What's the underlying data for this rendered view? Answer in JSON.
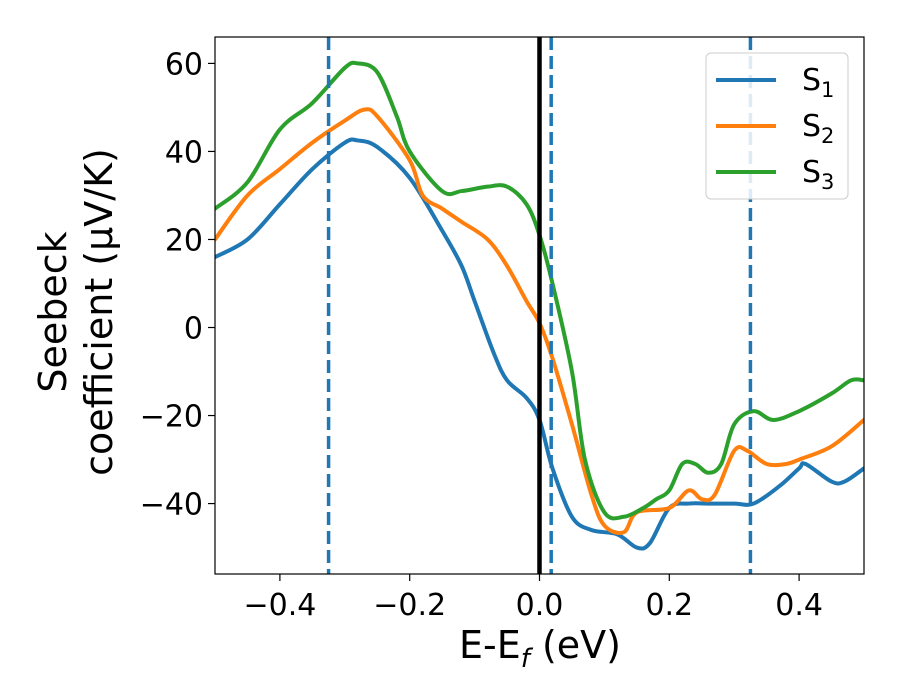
{
  "chart_data": {
    "type": "line",
    "title": "",
    "xlabel": {
      "base": "E-E",
      "sub": "f",
      "suffix": " (eV)"
    },
    "ylabel": {
      "line1": "Seebeck",
      "line2": "coefficient  (μV/K)"
    },
    "xlim": [
      -0.5,
      0.5
    ],
    "ylim": [
      -56,
      66
    ],
    "xticks": [
      -0.4,
      -0.2,
      0.0,
      0.2,
      0.4
    ],
    "xtick_labels": [
      "−0.4",
      "−0.2",
      "0.0",
      "0.2",
      "0.4"
    ],
    "yticks": [
      -40,
      -20,
      0,
      20,
      40,
      60
    ],
    "ytick_labels": [
      "−40",
      "−20",
      "0",
      "20",
      "40",
      "60"
    ],
    "grid": false,
    "legend_position": "top-right",
    "vertical_lines": [
      {
        "x": -0.325,
        "style": "dashed",
        "color": "#1f77b4"
      },
      {
        "x": 0.0,
        "style": "solid",
        "color": "#000000"
      },
      {
        "x": 0.018,
        "style": "dashed",
        "color": "#1f77b4"
      },
      {
        "x": 0.325,
        "style": "dashed",
        "color": "#1f77b4"
      }
    ],
    "series": [
      {
        "name": "S",
        "sub": "1",
        "color": "#1f77b4",
        "points": [
          [
            -0.5,
            16
          ],
          [
            -0.45,
            20
          ],
          [
            -0.4,
            28
          ],
          [
            -0.35,
            36
          ],
          [
            -0.3,
            42
          ],
          [
            -0.28,
            42.5
          ],
          [
            -0.25,
            41
          ],
          [
            -0.2,
            34
          ],
          [
            -0.15,
            22
          ],
          [
            -0.12,
            14
          ],
          [
            -0.1,
            6
          ],
          [
            -0.07,
            -6
          ],
          [
            -0.05,
            -12
          ],
          [
            -0.02,
            -16
          ],
          [
            0.0,
            -21
          ],
          [
            0.02,
            -32
          ],
          [
            0.05,
            -43
          ],
          [
            0.08,
            -46
          ],
          [
            0.12,
            -47
          ],
          [
            0.15,
            -50
          ],
          [
            0.17,
            -49
          ],
          [
            0.2,
            -41
          ],
          [
            0.23,
            -40
          ],
          [
            0.26,
            -40
          ],
          [
            0.3,
            -40
          ],
          [
            0.33,
            -40
          ],
          [
            0.37,
            -36
          ],
          [
            0.4,
            -32
          ],
          [
            0.41,
            -31
          ],
          [
            0.45,
            -35
          ],
          [
            0.47,
            -35
          ],
          [
            0.5,
            -32
          ]
        ]
      },
      {
        "name": "S",
        "sub": "2",
        "color": "#ff7f0e",
        "points": [
          [
            -0.5,
            20
          ],
          [
            -0.45,
            30
          ],
          [
            -0.4,
            36
          ],
          [
            -0.35,
            42
          ],
          [
            -0.3,
            47
          ],
          [
            -0.27,
            49.5
          ],
          [
            -0.25,
            48
          ],
          [
            -0.2,
            38
          ],
          [
            -0.18,
            30
          ],
          [
            -0.15,
            27
          ],
          [
            -0.12,
            24
          ],
          [
            -0.08,
            20
          ],
          [
            -0.05,
            14
          ],
          [
            -0.02,
            6
          ],
          [
            0.0,
            1
          ],
          [
            0.02,
            -7
          ],
          [
            0.05,
            -22
          ],
          [
            0.08,
            -38
          ],
          [
            0.1,
            -45
          ],
          [
            0.13,
            -46.5
          ],
          [
            0.15,
            -42
          ],
          [
            0.2,
            -41
          ],
          [
            0.23,
            -37
          ],
          [
            0.25,
            -39
          ],
          [
            0.27,
            -38
          ],
          [
            0.3,
            -28
          ],
          [
            0.32,
            -28
          ],
          [
            0.35,
            -31
          ],
          [
            0.38,
            -31
          ],
          [
            0.4,
            -30
          ],
          [
            0.45,
            -27
          ],
          [
            0.5,
            -21
          ]
        ]
      },
      {
        "name": "S",
        "sub": "3",
        "color": "#2ca02c",
        "points": [
          [
            -0.5,
            27
          ],
          [
            -0.45,
            33
          ],
          [
            -0.4,
            45
          ],
          [
            -0.35,
            51
          ],
          [
            -0.3,
            59
          ],
          [
            -0.28,
            60
          ],
          [
            -0.25,
            58
          ],
          [
            -0.22,
            48
          ],
          [
            -0.2,
            40
          ],
          [
            -0.15,
            31
          ],
          [
            -0.12,
            31
          ],
          [
            -0.08,
            32
          ],
          [
            -0.05,
            32
          ],
          [
            -0.02,
            28
          ],
          [
            0.0,
            21
          ],
          [
            0.02,
            10
          ],
          [
            0.05,
            -10
          ],
          [
            0.07,
            -30
          ],
          [
            0.1,
            -42
          ],
          [
            0.13,
            -43
          ],
          [
            0.16,
            -41
          ],
          [
            0.18,
            -39
          ],
          [
            0.2,
            -37
          ],
          [
            0.22,
            -31
          ],
          [
            0.24,
            -31
          ],
          [
            0.26,
            -33
          ],
          [
            0.28,
            -31
          ],
          [
            0.3,
            -22
          ],
          [
            0.33,
            -19
          ],
          [
            0.36,
            -21
          ],
          [
            0.4,
            -19
          ],
          [
            0.45,
            -15
          ],
          [
            0.48,
            -12
          ],
          [
            0.5,
            -12
          ]
        ]
      }
    ]
  }
}
